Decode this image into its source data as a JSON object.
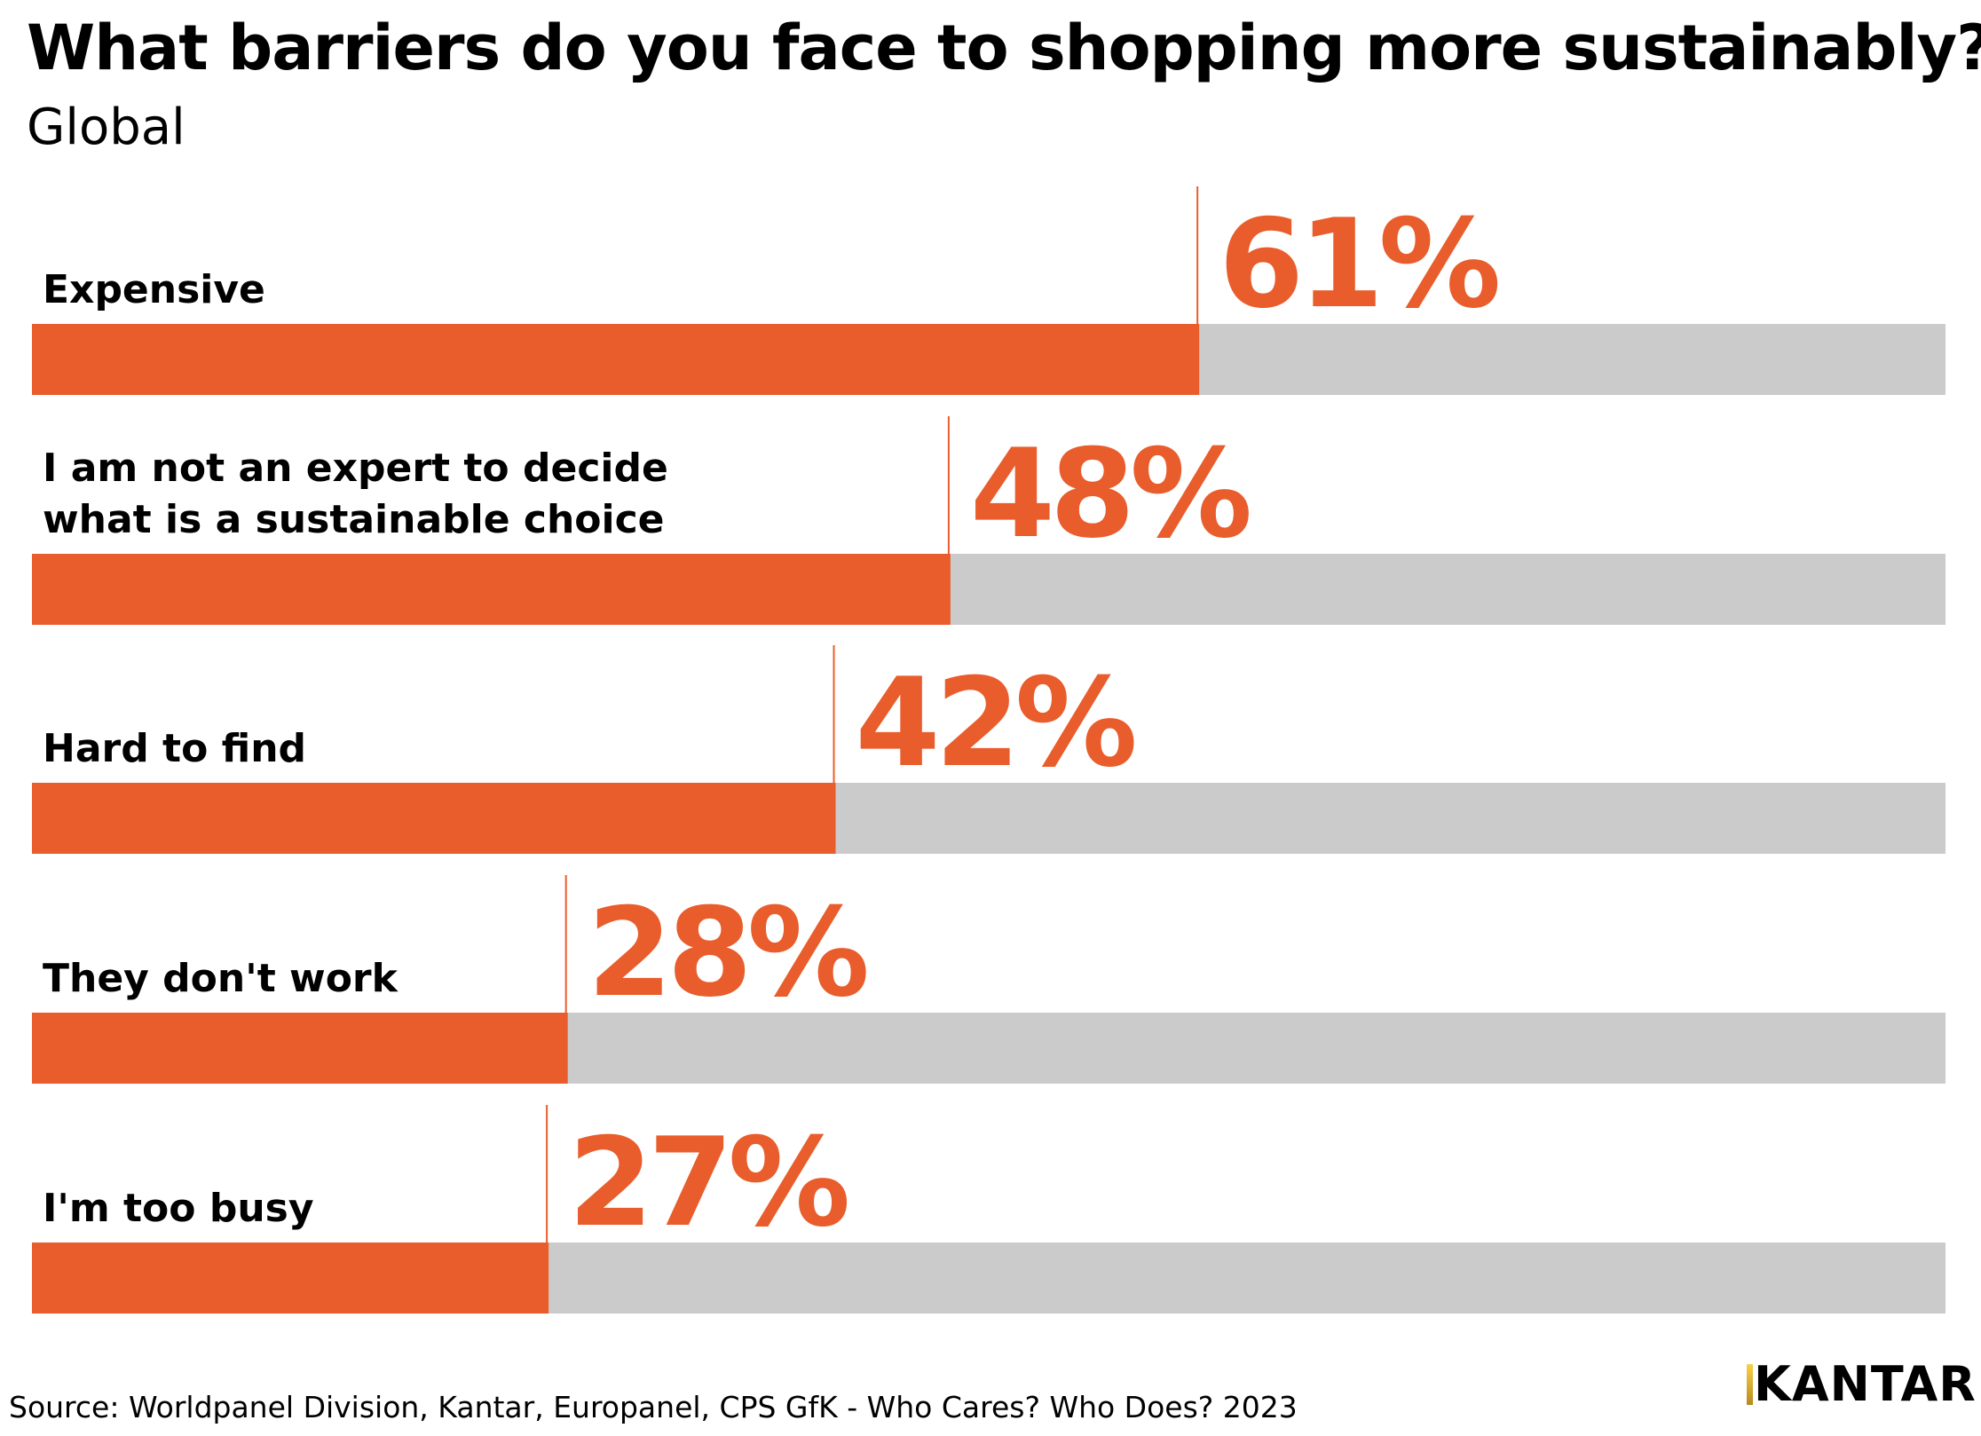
{
  "header": {
    "title": "What barriers do you face to shopping more sustainably?",
    "subtitle": "Global"
  },
  "footer": {
    "source": "Source: Worldpanel Division, Kantar, Europanel, CPS GfK - Who Cares? Who Does? 2023",
    "logo_text": "KANTAR"
  },
  "colors": {
    "bar": "#e95d2c",
    "track": "#cbcbcb",
    "value_text": "#e95d2c",
    "label_text": "#000000"
  },
  "chart_data": {
    "type": "bar",
    "orientation": "horizontal",
    "title": "What barriers do you face to shopping more sustainably?",
    "subtitle": "Global",
    "categories": [
      "Expensive",
      "I am not an expert to decide what is a sustainable choice",
      "Hard to find",
      "They don't work",
      "I'm too busy"
    ],
    "label_lines": [
      [
        "Expensive"
      ],
      [
        "I am not an expert to decide",
        "what is a sustainable choice"
      ],
      [
        "Hard to find"
      ],
      [
        "They don't work"
      ],
      [
        "I'm too busy"
      ]
    ],
    "values": [
      61,
      48,
      42,
      28,
      27
    ],
    "value_labels": [
      "61%",
      "48%",
      "42%",
      "28%",
      "27%"
    ],
    "unit": "%",
    "xlim": [
      0,
      100
    ],
    "xlabel": "",
    "ylabel": "",
    "grid": false,
    "legend": "none"
  }
}
